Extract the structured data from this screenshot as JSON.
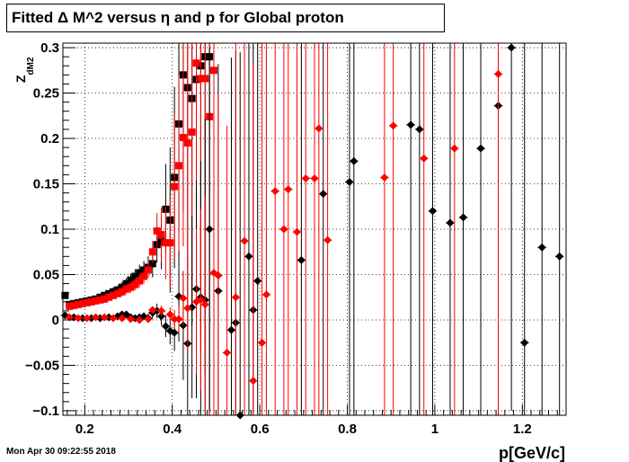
{
  "title": "Fitted Δ M^2 versus η and p for Global proton",
  "timestamp": "Mon Apr 30 09:22:55 2018",
  "chart_data": {
    "type": "scatter",
    "title": "Fitted Δ M^2 versus η and p for Global proton",
    "xlabel": "p[GeV/c]",
    "ylabel": "Z_dM2",
    "xlim": [
      0.15,
      1.3
    ],
    "ylim": [
      -0.105,
      0.305
    ],
    "xticks": [
      0.2,
      0.4,
      0.6,
      0.8,
      1.0,
      1.2
    ],
    "xtick_labels": [
      "0.2",
      "0.4",
      "0.6",
      "0.8",
      "1",
      "1.2"
    ],
    "yticks": [
      -0.1,
      -0.05,
      0,
      0.05,
      0.1,
      0.15,
      0.2,
      0.25,
      0.3
    ],
    "ytick_labels": [
      "−0.1",
      "−0.05",
      "0",
      "0.05",
      "0.1",
      "0.15",
      "0.2",
      "0.25",
      "0.3"
    ],
    "grid": true,
    "series": [
      {
        "color": "#000000",
        "marker": "square",
        "points": [
          [
            0.155,
            0.027
          ],
          [
            0.165,
            0.017
          ],
          [
            0.175,
            0.018
          ],
          [
            0.185,
            0.019
          ],
          [
            0.195,
            0.02
          ],
          [
            0.205,
            0.021
          ],
          [
            0.215,
            0.022
          ],
          [
            0.225,
            0.023
          ],
          [
            0.235,
            0.025
          ],
          [
            0.245,
            0.027
          ],
          [
            0.255,
            0.029
          ],
          [
            0.265,
            0.031
          ],
          [
            0.275,
            0.033
          ],
          [
            0.285,
            0.036
          ],
          [
            0.295,
            0.04
          ],
          [
            0.305,
            0.044
          ],
          [
            0.315,
            0.048
          ],
          [
            0.325,
            0.052
          ],
          [
            0.335,
            0.055
          ],
          [
            0.345,
            0.058
          ],
          [
            0.355,
            0.062
          ],
          [
            0.365,
            0.083
          ],
          [
            0.375,
            0.086
          ],
          [
            0.385,
            0.122
          ],
          [
            0.395,
            0.11
          ],
          [
            0.405,
            0.157
          ],
          [
            0.415,
            0.216
          ],
          [
            0.425,
            0.27
          ],
          [
            0.435,
            0.256
          ],
          [
            0.445,
            0.244
          ],
          [
            0.455,
            0.265
          ],
          [
            0.465,
            0.28
          ],
          [
            0.475,
            0.29
          ],
          [
            0.485,
            0.29
          ]
        ],
        "yerr": [
          0.003,
          0.003,
          0.003,
          0.003,
          0.003,
          0.003,
          0.003,
          0.003,
          0.004,
          0.004,
          0.004,
          0.005,
          0.005,
          0.006,
          0.006,
          0.007,
          0.008,
          0.009,
          0.01,
          0.012,
          0.015,
          0.02,
          0.03,
          0.05,
          0.08,
          0.1,
          0.12,
          0.15,
          0.2,
          0.25,
          0.3,
          0.3,
          0.35,
          0.4
        ]
      },
      {
        "color": "#ff0000",
        "marker": "square",
        "points": [
          [
            0.165,
            0.015
          ],
          [
            0.175,
            0.016
          ],
          [
            0.185,
            0.017
          ],
          [
            0.195,
            0.018
          ],
          [
            0.205,
            0.019
          ],
          [
            0.215,
            0.02
          ],
          [
            0.225,
            0.021
          ],
          [
            0.235,
            0.022
          ],
          [
            0.245,
            0.023
          ],
          [
            0.255,
            0.025
          ],
          [
            0.265,
            0.027
          ],
          [
            0.275,
            0.029
          ],
          [
            0.285,
            0.031
          ],
          [
            0.295,
            0.034
          ],
          [
            0.305,
            0.036
          ],
          [
            0.315,
            0.039
          ],
          [
            0.325,
            0.043
          ],
          [
            0.335,
            0.048
          ],
          [
            0.345,
            0.055
          ],
          [
            0.355,
            0.075
          ],
          [
            0.365,
            0.098
          ],
          [
            0.375,
            0.094
          ],
          [
            0.385,
            0.085
          ],
          [
            0.395,
            0.085
          ],
          [
            0.405,
            0.147
          ],
          [
            0.415,
            0.17
          ],
          [
            0.425,
            0.201
          ],
          [
            0.435,
            0.195
          ],
          [
            0.445,
            0.207
          ],
          [
            0.455,
            0.283
          ],
          [
            0.465,
            0.266
          ],
          [
            0.475,
            0.266
          ],
          [
            0.485,
            0.224
          ],
          [
            0.495,
            0.275
          ]
        ],
        "yerr": [
          0.003,
          0.003,
          0.003,
          0.003,
          0.003,
          0.003,
          0.003,
          0.003,
          0.004,
          0.004,
          0.004,
          0.004,
          0.005,
          0.005,
          0.006,
          0.006,
          0.007,
          0.008,
          0.009,
          0.012,
          0.02,
          0.03,
          0.04,
          0.05,
          0.08,
          0.1,
          0.12,
          0.15,
          0.2,
          0.25,
          0.3,
          0.3,
          0.35,
          0.4
        ]
      },
      {
        "color": "#000000",
        "marker": "diamond",
        "points": [
          [
            0.155,
            0.005
          ],
          [
            0.175,
            0.003
          ],
          [
            0.195,
            0.002
          ],
          [
            0.215,
            0.002
          ],
          [
            0.235,
            0.002
          ],
          [
            0.255,
            0.003
          ],
          [
            0.275,
            0.004
          ],
          [
            0.285,
            0.006
          ],
          [
            0.295,
            0.006
          ],
          [
            0.305,
            0.003
          ],
          [
            0.315,
            0.002
          ],
          [
            0.325,
            0.003
          ],
          [
            0.335,
            0.004
          ],
          [
            0.345,
            0.002
          ],
          [
            0.355,
            0.008
          ],
          [
            0.365,
            0.01
          ],
          [
            0.375,
            0.004
          ],
          [
            0.385,
            -0.007
          ],
          [
            0.395,
            -0.012
          ],
          [
            0.405,
            -0.014
          ],
          [
            0.415,
            0.026
          ],
          [
            0.425,
            -0.006
          ],
          [
            0.435,
            -0.026
          ],
          [
            0.445,
            0.014
          ],
          [
            0.455,
            0.034
          ],
          [
            0.465,
            0.025
          ],
          [
            0.475,
            0.022
          ],
          [
            0.485,
            0.1
          ],
          [
            0.505,
            0.032
          ],
          [
            0.535,
            -0.011
          ],
          [
            0.545,
            -0.003
          ],
          [
            0.555,
            -0.105
          ],
          [
            0.575,
            0.07
          ],
          [
            0.585,
            0.011
          ],
          [
            0.595,
            0.043
          ],
          [
            0.695,
            0.066
          ],
          [
            0.745,
            0.139
          ],
          [
            0.805,
            0.152
          ],
          [
            0.815,
            0.175
          ],
          [
            0.945,
            0.215
          ],
          [
            0.965,
            0.21
          ],
          [
            0.995,
            0.12
          ],
          [
            1.035,
            0.107
          ],
          [
            1.065,
            0.113
          ],
          [
            1.105,
            0.189
          ],
          [
            1.145,
            0.236
          ],
          [
            1.175,
            0.3
          ],
          [
            1.205,
            -0.025
          ],
          [
            1.245,
            0.08
          ],
          [
            1.285,
            0.07
          ]
        ],
        "xerr": 0.01,
        "yerr": [
          0.002,
          0.002,
          0.002,
          0.002,
          0.002,
          0.002,
          0.002,
          0.003,
          0.003,
          0.003,
          0.003,
          0.004,
          0.004,
          0.005,
          0.006,
          0.008,
          0.01,
          0.012,
          0.015,
          0.02,
          0.05,
          0.06,
          0.08,
          0.1,
          0.12,
          0.15,
          0.2,
          0.2,
          0.25,
          0.3,
          0.3,
          0.4,
          0.4,
          0.4,
          0.4,
          0.4,
          0.4,
          0.4,
          0.4,
          0.4,
          0.4,
          0.4,
          0.4,
          0.4,
          0.4,
          0.4,
          0.4,
          0.4,
          0.4,
          0.4
        ]
      },
      {
        "color": "#ff0000",
        "marker": "diamond",
        "points": [
          [
            0.165,
            0.003
          ],
          [
            0.185,
            0.002
          ],
          [
            0.205,
            0.002
          ],
          [
            0.225,
            0.003
          ],
          [
            0.245,
            0.003
          ],
          [
            0.265,
            0.002
          ],
          [
            0.285,
            0.002
          ],
          [
            0.305,
            0.001
          ],
          [
            0.325,
            0.0
          ],
          [
            0.345,
            0.001
          ],
          [
            0.355,
            0.011
          ],
          [
            0.375,
            0.01
          ],
          [
            0.395,
            0.006
          ],
          [
            0.405,
            0.001
          ],
          [
            0.415,
            0.001
          ],
          [
            0.425,
            0.024
          ],
          [
            0.435,
            0.013
          ],
          [
            0.455,
            0.02
          ],
          [
            0.465,
            0.022
          ],
          [
            0.475,
            0.017
          ],
          [
            0.495,
            0.052
          ],
          [
            0.505,
            0.049
          ],
          [
            0.525,
            -0.036
          ],
          [
            0.545,
            0.025
          ],
          [
            0.565,
            0.087
          ],
          [
            0.585,
            -0.067
          ],
          [
            0.605,
            -0.025
          ],
          [
            0.615,
            0.028
          ],
          [
            0.635,
            0.142
          ],
          [
            0.655,
            0.1
          ],
          [
            0.665,
            0.144
          ],
          [
            0.685,
            0.097
          ],
          [
            0.705,
            0.156
          ],
          [
            0.725,
            0.156
          ],
          [
            0.735,
            0.211
          ],
          [
            0.755,
            0.088
          ],
          [
            0.885,
            0.157
          ],
          [
            0.905,
            0.214
          ],
          [
            0.975,
            0.178
          ],
          [
            1.045,
            0.189
          ],
          [
            1.145,
            0.271
          ]
        ],
        "xerr": 0.01,
        "yerr": [
          0.002,
          0.002,
          0.002,
          0.002,
          0.002,
          0.002,
          0.002,
          0.002,
          0.003,
          0.003,
          0.004,
          0.006,
          0.008,
          0.01,
          0.015,
          0.03,
          0.05,
          0.08,
          0.1,
          0.12,
          0.15,
          0.2,
          0.25,
          0.3,
          0.3,
          0.35,
          0.4,
          0.4,
          0.4,
          0.4,
          0.4,
          0.4,
          0.4,
          0.4,
          0.4,
          0.4,
          0.4,
          0.4,
          0.4,
          0.4,
          0.4
        ]
      }
    ]
  }
}
